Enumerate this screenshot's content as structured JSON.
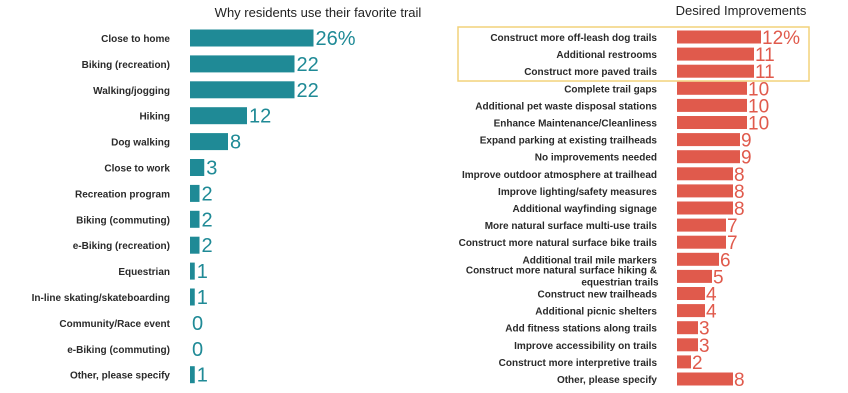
{
  "chart_data": [
    {
      "type": "bar",
      "orientation": "horizontal",
      "title": "Why residents use their favorite trail",
      "color": "#1f8a96",
      "categories": [
        "Close to home",
        "Biking (recreation)",
        "Walking/jogging",
        "Hiking",
        "Dog walking",
        "Close to work",
        "Recreation program",
        "Biking (commuting)",
        "e-Biking (recreation)",
        "Equestrian",
        "In-line skating/skateboarding",
        "Community/Race event",
        "e-Biking (commuting)",
        "Other, please specify"
      ],
      "values": [
        26,
        22,
        22,
        12,
        8,
        3,
        2,
        2,
        2,
        1,
        1,
        0,
        0,
        1
      ],
      "value_labels": [
        "26%",
        "22",
        "22",
        "12",
        "8",
        "3",
        "2",
        "2",
        "2",
        "1",
        "1",
        "0",
        "0",
        "1"
      ],
      "unit": "%"
    },
    {
      "type": "bar",
      "orientation": "horizontal",
      "title": "Desired Improvements",
      "color": "#e05a4c",
      "highlight_color": "#f2d27a",
      "highlighted_categories": [
        "Construct more off-leash dog trails",
        "Additional restrooms",
        "Construct more paved trails"
      ],
      "categories": [
        "Construct more off-leash dog trails",
        "Additional restrooms",
        "Construct more paved trails",
        "Complete trail gaps",
        "Additional pet waste disposal stations",
        "Enhance Maintenance/Cleanliness",
        "Expand parking at existing trailheads",
        "No improvements needed",
        "Improve outdoor atmosphere at trailhead",
        "Improve lighting/safety measures",
        "Additional wayfinding signage",
        "More natural surface multi-use trails",
        "Construct more natural surface bike trails",
        "Additional trail mile markers",
        "Construct more natural surface hiking & equestrian trails",
        "Construct new trailheads",
        "Additional picnic shelters",
        "Add fitness stations along trails",
        "Improve accessibility on trails",
        "Construct more interpretive trails",
        "Other, please specify"
      ],
      "values": [
        12,
        11,
        11,
        10,
        10,
        10,
        9,
        9,
        8,
        8,
        8,
        7,
        7,
        6,
        5,
        4,
        4,
        3,
        3,
        2,
        8
      ],
      "value_labels": [
        "12%",
        "11",
        "11",
        "10",
        "10",
        "10",
        "9",
        "9",
        "8",
        "8",
        "8",
        "7",
        "7",
        "6",
        "5",
        "4",
        "4",
        "3",
        "3",
        "2",
        "8"
      ],
      "unit": "%"
    }
  ]
}
